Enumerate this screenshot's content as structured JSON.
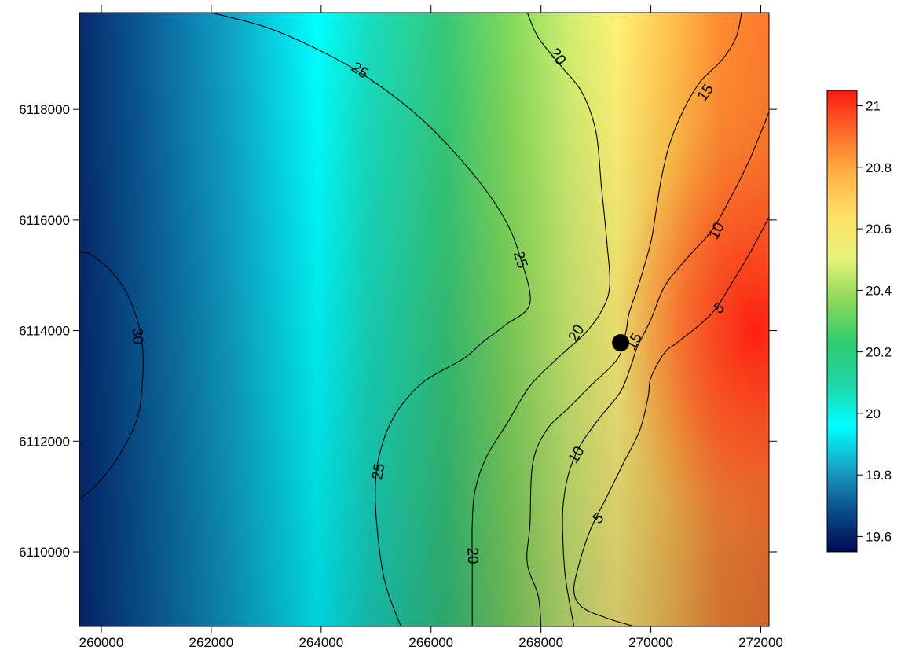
{
  "chart_data": {
    "type": "heatmap",
    "subtype": "contour map",
    "title": "",
    "xlabel": "",
    "ylabel": "",
    "xlim": [
      259600,
      272150
    ],
    "ylim": [
      6108650,
      6119750
    ],
    "x_ticks": [
      260000,
      262000,
      264000,
      266000,
      268000,
      270000,
      272000
    ],
    "x_tick_labels": [
      "260000",
      "262000",
      "264000",
      "266000",
      "268000",
      "270000",
      "272000"
    ],
    "y_ticks": [
      6110000,
      6112000,
      6114000,
      6116000,
      6118000
    ],
    "y_tick_labels": [
      "6110000",
      "6112000",
      "6114000",
      "6116000",
      "6118000"
    ],
    "colorbar": {
      "min": 19.55,
      "max": 21.05,
      "ticks": [
        19.6,
        19.8,
        20,
        20.2,
        20.4,
        20.6,
        20.8,
        21
      ],
      "tick_labels": [
        "19.6",
        "19.8",
        "20",
        "20.2",
        "20.4",
        "20.6",
        "20.8",
        "21"
      ],
      "colormap": [
        "#000a55",
        "#0a4f8c",
        "#1aa3c7",
        "#00ffff",
        "#1fd6a6",
        "#2ecc71",
        "#8cd95a",
        "#e6f27a",
        "#ffe066",
        "#ffb347",
        "#ff6a2a",
        "#ff1a10"
      ]
    },
    "marker": {
      "x": 269450,
      "y": 6113780,
      "shape": "filled-circle",
      "color": "#000000"
    },
    "contours": [
      {
        "level": 30,
        "label": "30",
        "points": [
          [
            259600,
            6115420
          ],
          [
            259800,
            6115380
          ],
          [
            260150,
            6115100
          ],
          [
            260450,
            6114700
          ],
          [
            260650,
            6114200
          ],
          [
            260750,
            6113700
          ],
          [
            260750,
            6113100
          ],
          [
            260650,
            6112400
          ],
          [
            260300,
            6111700
          ],
          [
            259900,
            6111200
          ],
          [
            259600,
            6110950
          ]
        ],
        "labels": [
          {
            "x": 260650,
            "y": 6113900,
            "angle": 88
          }
        ]
      },
      {
        "level": 25,
        "label": "25",
        "points": [
          [
            262000,
            6119750
          ],
          [
            263100,
            6119450
          ],
          [
            264300,
            6118900
          ],
          [
            265100,
            6118400
          ],
          [
            265800,
            6117850
          ],
          [
            266400,
            6117250
          ],
          [
            266950,
            6116600
          ],
          [
            267350,
            6116000
          ],
          [
            267600,
            6115400
          ],
          [
            267800,
            6114500
          ],
          [
            267350,
            6114100
          ],
          [
            266950,
            6113800
          ],
          [
            266600,
            6113500
          ],
          [
            265900,
            6113100
          ],
          [
            265500,
            6112700
          ],
          [
            265250,
            6112300
          ],
          [
            265100,
            6111900
          ],
          [
            265000,
            6111400
          ],
          [
            265000,
            6110650
          ],
          [
            265150,
            6109500
          ],
          [
            265450,
            6108650
          ]
        ],
        "labels": [
          {
            "x": 264700,
            "y": 6118700,
            "angle": 35
          },
          {
            "x": 267620,
            "y": 6115280,
            "angle": 72
          },
          {
            "x": 265050,
            "y": 6111450,
            "angle": -80
          }
        ]
      },
      {
        "level": 20,
        "label": "20",
        "points": [
          [
            267750,
            6119750
          ],
          [
            267950,
            6119300
          ],
          [
            268350,
            6118800
          ],
          [
            268750,
            6118300
          ],
          [
            269000,
            6117600
          ],
          [
            269100,
            6116600
          ],
          [
            269200,
            6115600
          ],
          [
            269250,
            6114800
          ],
          [
            269100,
            6114350
          ],
          [
            268800,
            6113950
          ],
          [
            268300,
            6113500
          ],
          [
            267800,
            6113000
          ],
          [
            267400,
            6112350
          ],
          [
            267000,
            6111700
          ],
          [
            266800,
            6111100
          ],
          [
            266750,
            6110500
          ],
          [
            266750,
            6109800
          ],
          [
            266750,
            6108650
          ]
        ],
        "labels": [
          {
            "x": 268300,
            "y": 6118950,
            "angle": 55
          },
          {
            "x": 268650,
            "y": 6113950,
            "angle": -60
          },
          {
            "x": 266750,
            "y": 6109930,
            "angle": 88
          }
        ]
      },
      {
        "level": 15,
        "label": "15",
        "points": [
          [
            271650,
            6119750
          ],
          [
            271550,
            6119300
          ],
          [
            271300,
            6118900
          ],
          [
            270900,
            6118500
          ],
          [
            270600,
            6118000
          ],
          [
            270350,
            6117400
          ],
          [
            270200,
            6116800
          ],
          [
            270100,
            6116200
          ],
          [
            270000,
            6115600
          ],
          [
            269800,
            6114900
          ],
          [
            269600,
            6114300
          ],
          [
            269550,
            6114000
          ],
          [
            269400,
            6113500
          ],
          [
            268900,
            6113000
          ],
          [
            268500,
            6112600
          ],
          [
            268100,
            6112200
          ],
          [
            267850,
            6111600
          ],
          [
            267800,
            6110500
          ],
          [
            267750,
            6109800
          ],
          [
            267950,
            6109200
          ],
          [
            268000,
            6108650
          ]
        ],
        "labels": [
          {
            "x": 271000,
            "y": 6118300,
            "angle": -55
          },
          {
            "x": 269700,
            "y": 6113800,
            "angle": -60
          }
        ]
      },
      {
        "level": 10,
        "label": "10",
        "points": [
          [
            272150,
            6117950
          ],
          [
            271800,
            6117100
          ],
          [
            271450,
            6116400
          ],
          [
            271100,
            6115800
          ],
          [
            270650,
            6115300
          ],
          [
            270250,
            6114800
          ],
          [
            270000,
            6114200
          ],
          [
            269750,
            6113700
          ],
          [
            269650,
            6113400
          ],
          [
            269450,
            6112900
          ],
          [
            269050,
            6112400
          ],
          [
            268700,
            6111900
          ],
          [
            268500,
            6111400
          ],
          [
            268400,
            6110800
          ],
          [
            268400,
            6110200
          ],
          [
            268450,
            6109500
          ],
          [
            268600,
            6108650
          ]
        ],
        "labels": [
          {
            "x": 271200,
            "y": 6115800,
            "angle": -62
          },
          {
            "x": 268650,
            "y": 6111750,
            "angle": -58
          }
        ]
      },
      {
        "level": 5,
        "label": "5",
        "points": [
          [
            272150,
            6116050
          ],
          [
            271800,
            6115400
          ],
          [
            271500,
            6114900
          ],
          [
            271100,
            6114300
          ],
          [
            270500,
            6113800
          ],
          [
            270250,
            6113600
          ],
          [
            270000,
            6113150
          ],
          [
            269950,
            6112800
          ],
          [
            269800,
            6112200
          ],
          [
            269500,
            6111600
          ],
          [
            269200,
            6111000
          ],
          [
            268900,
            6110400
          ],
          [
            268700,
            6109800
          ],
          [
            268600,
            6109300
          ],
          [
            268750,
            6109000
          ],
          [
            269200,
            6108800
          ],
          [
            269700,
            6108650
          ]
        ],
        "labels": [
          {
            "x": 271250,
            "y": 6114400,
            "angle": -35
          },
          {
            "x": 269050,
            "y": 6110600,
            "angle": -45
          }
        ]
      }
    ]
  }
}
